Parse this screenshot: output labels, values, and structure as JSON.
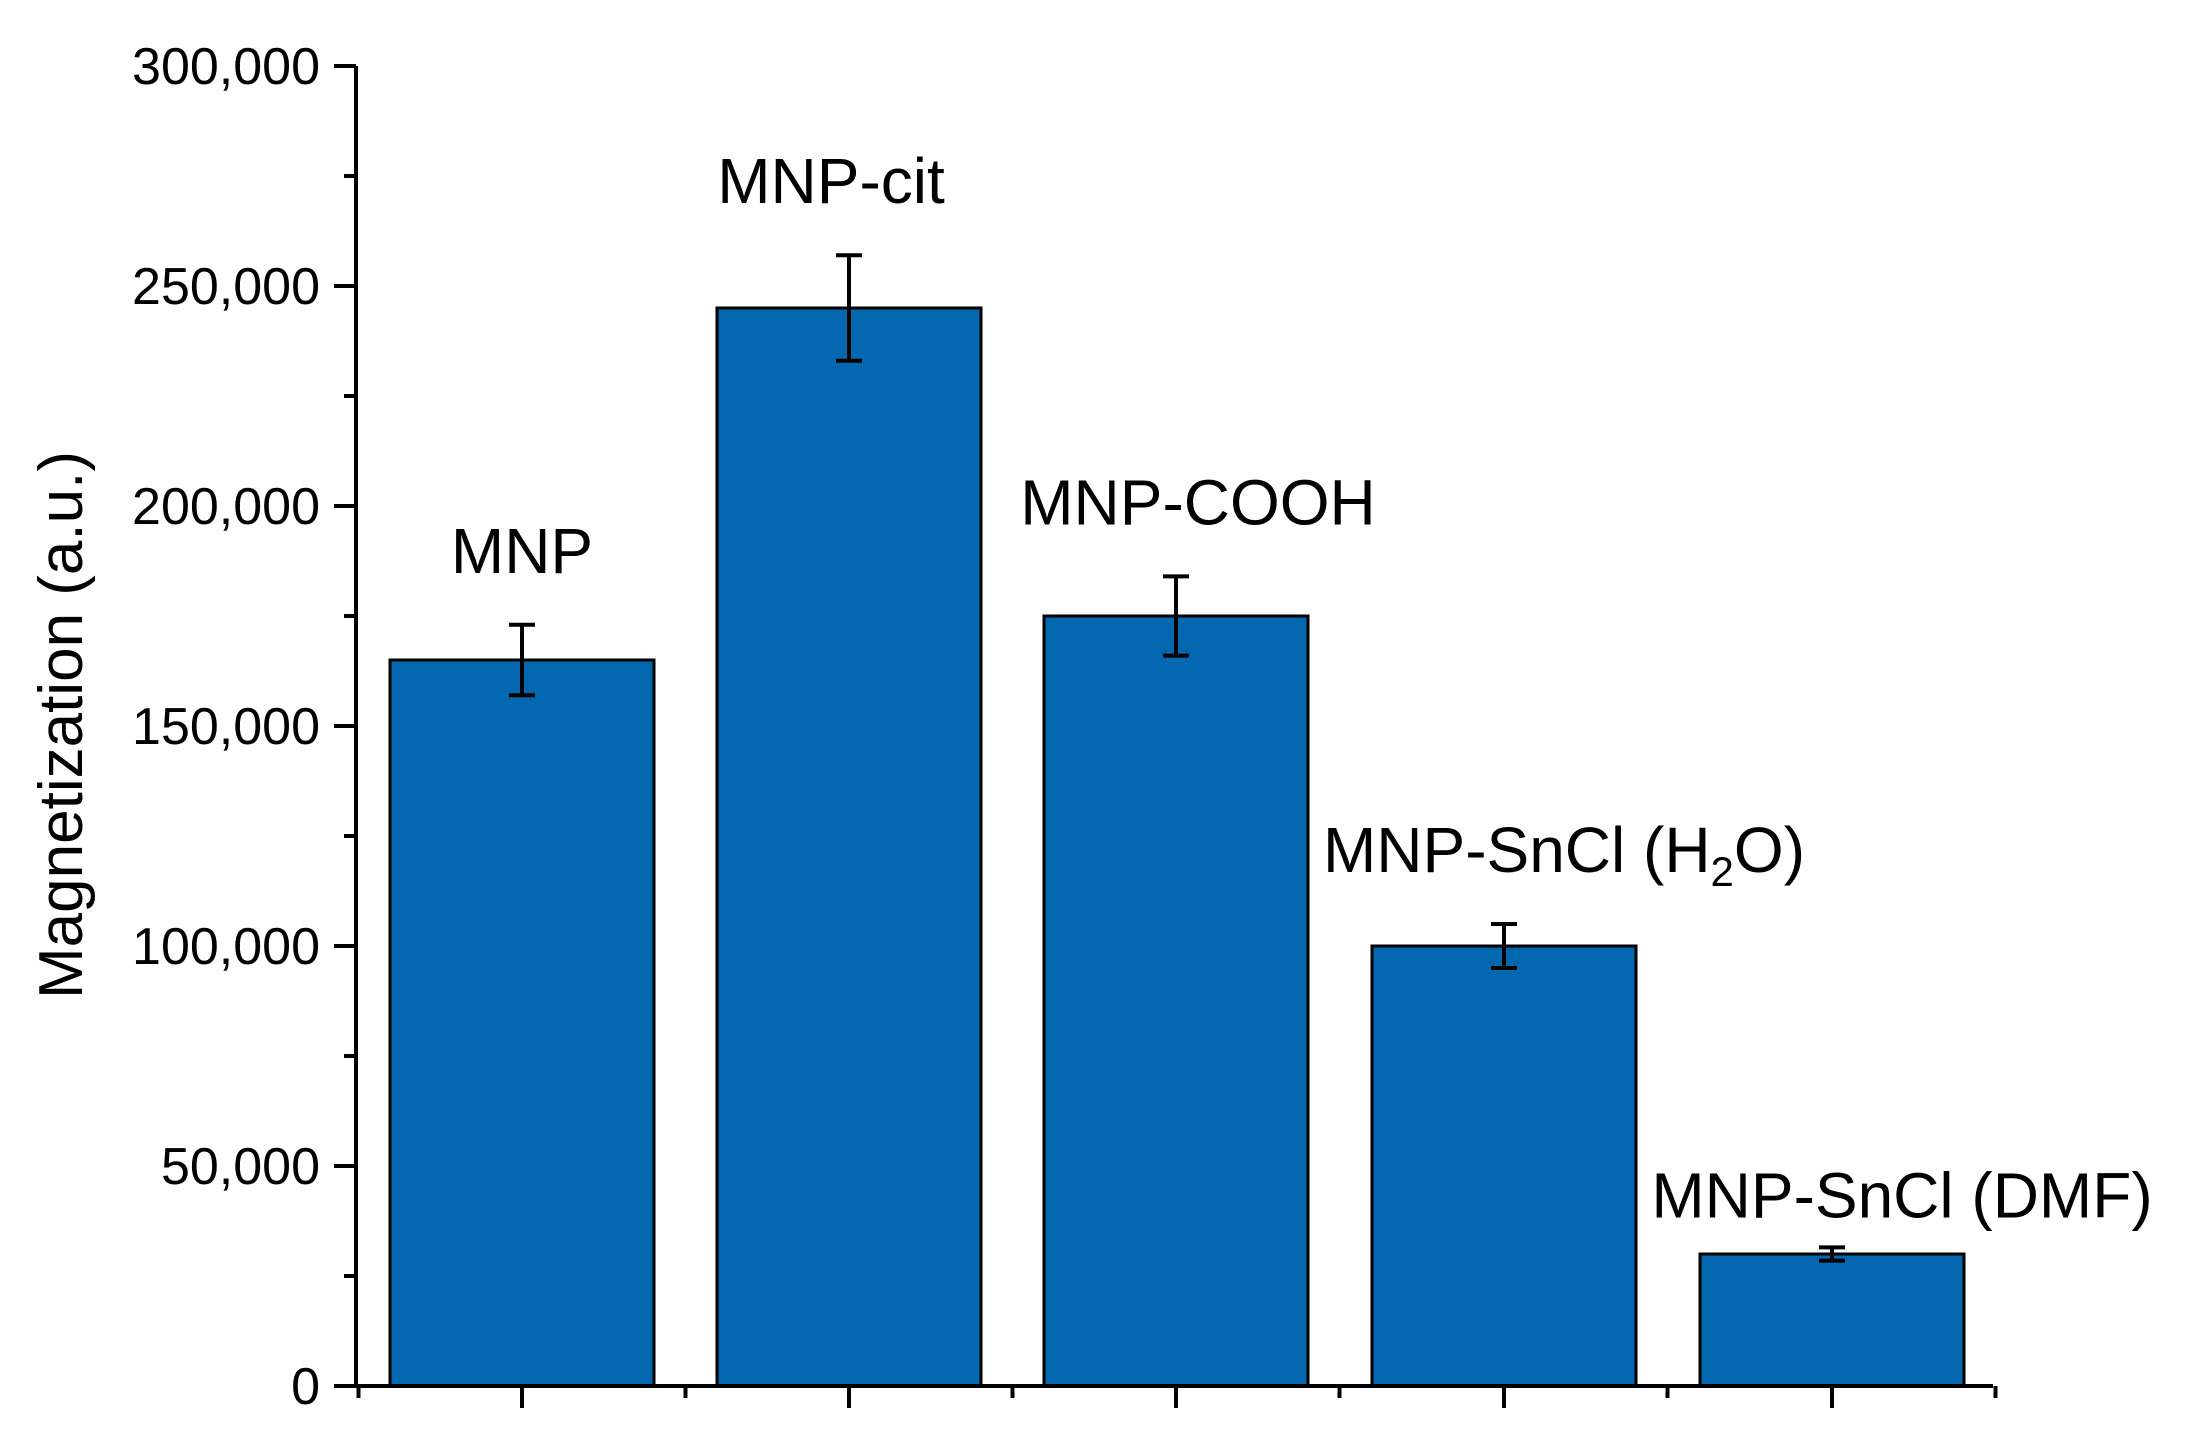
{
  "chart_data": {
    "type": "bar",
    "title": "",
    "xlabel": "",
    "ylabel": "Magnetization (a.u.)",
    "ylim": [
      0,
      300000
    ],
    "yticks": [
      0,
      50000,
      100000,
      150000,
      200000,
      250000,
      300000
    ],
    "ytick_labels": [
      "0",
      "50,000",
      "100,000",
      "150,000",
      "200,000",
      "250,000",
      "300,000"
    ],
    "categories": [
      {
        "main": "MNP",
        "sub": "",
        "tail": ""
      },
      {
        "main": "MNP-cit",
        "sub": "",
        "tail": ""
      },
      {
        "main": "MNP-COOH",
        "sub": "",
        "tail": ""
      },
      {
        "main": "MNP-SnCl (H",
        "sub": "2",
        "tail": "O)"
      },
      {
        "main": "MNP-SnCl (DMF)",
        "sub": "",
        "tail": ""
      }
    ],
    "values": [
      165000,
      245000,
      175000,
      100000,
      30000
    ],
    "errors": [
      8000,
      12000,
      9000,
      5000,
      1500
    ],
    "bar_color": "#0468B1",
    "grid": false
  }
}
